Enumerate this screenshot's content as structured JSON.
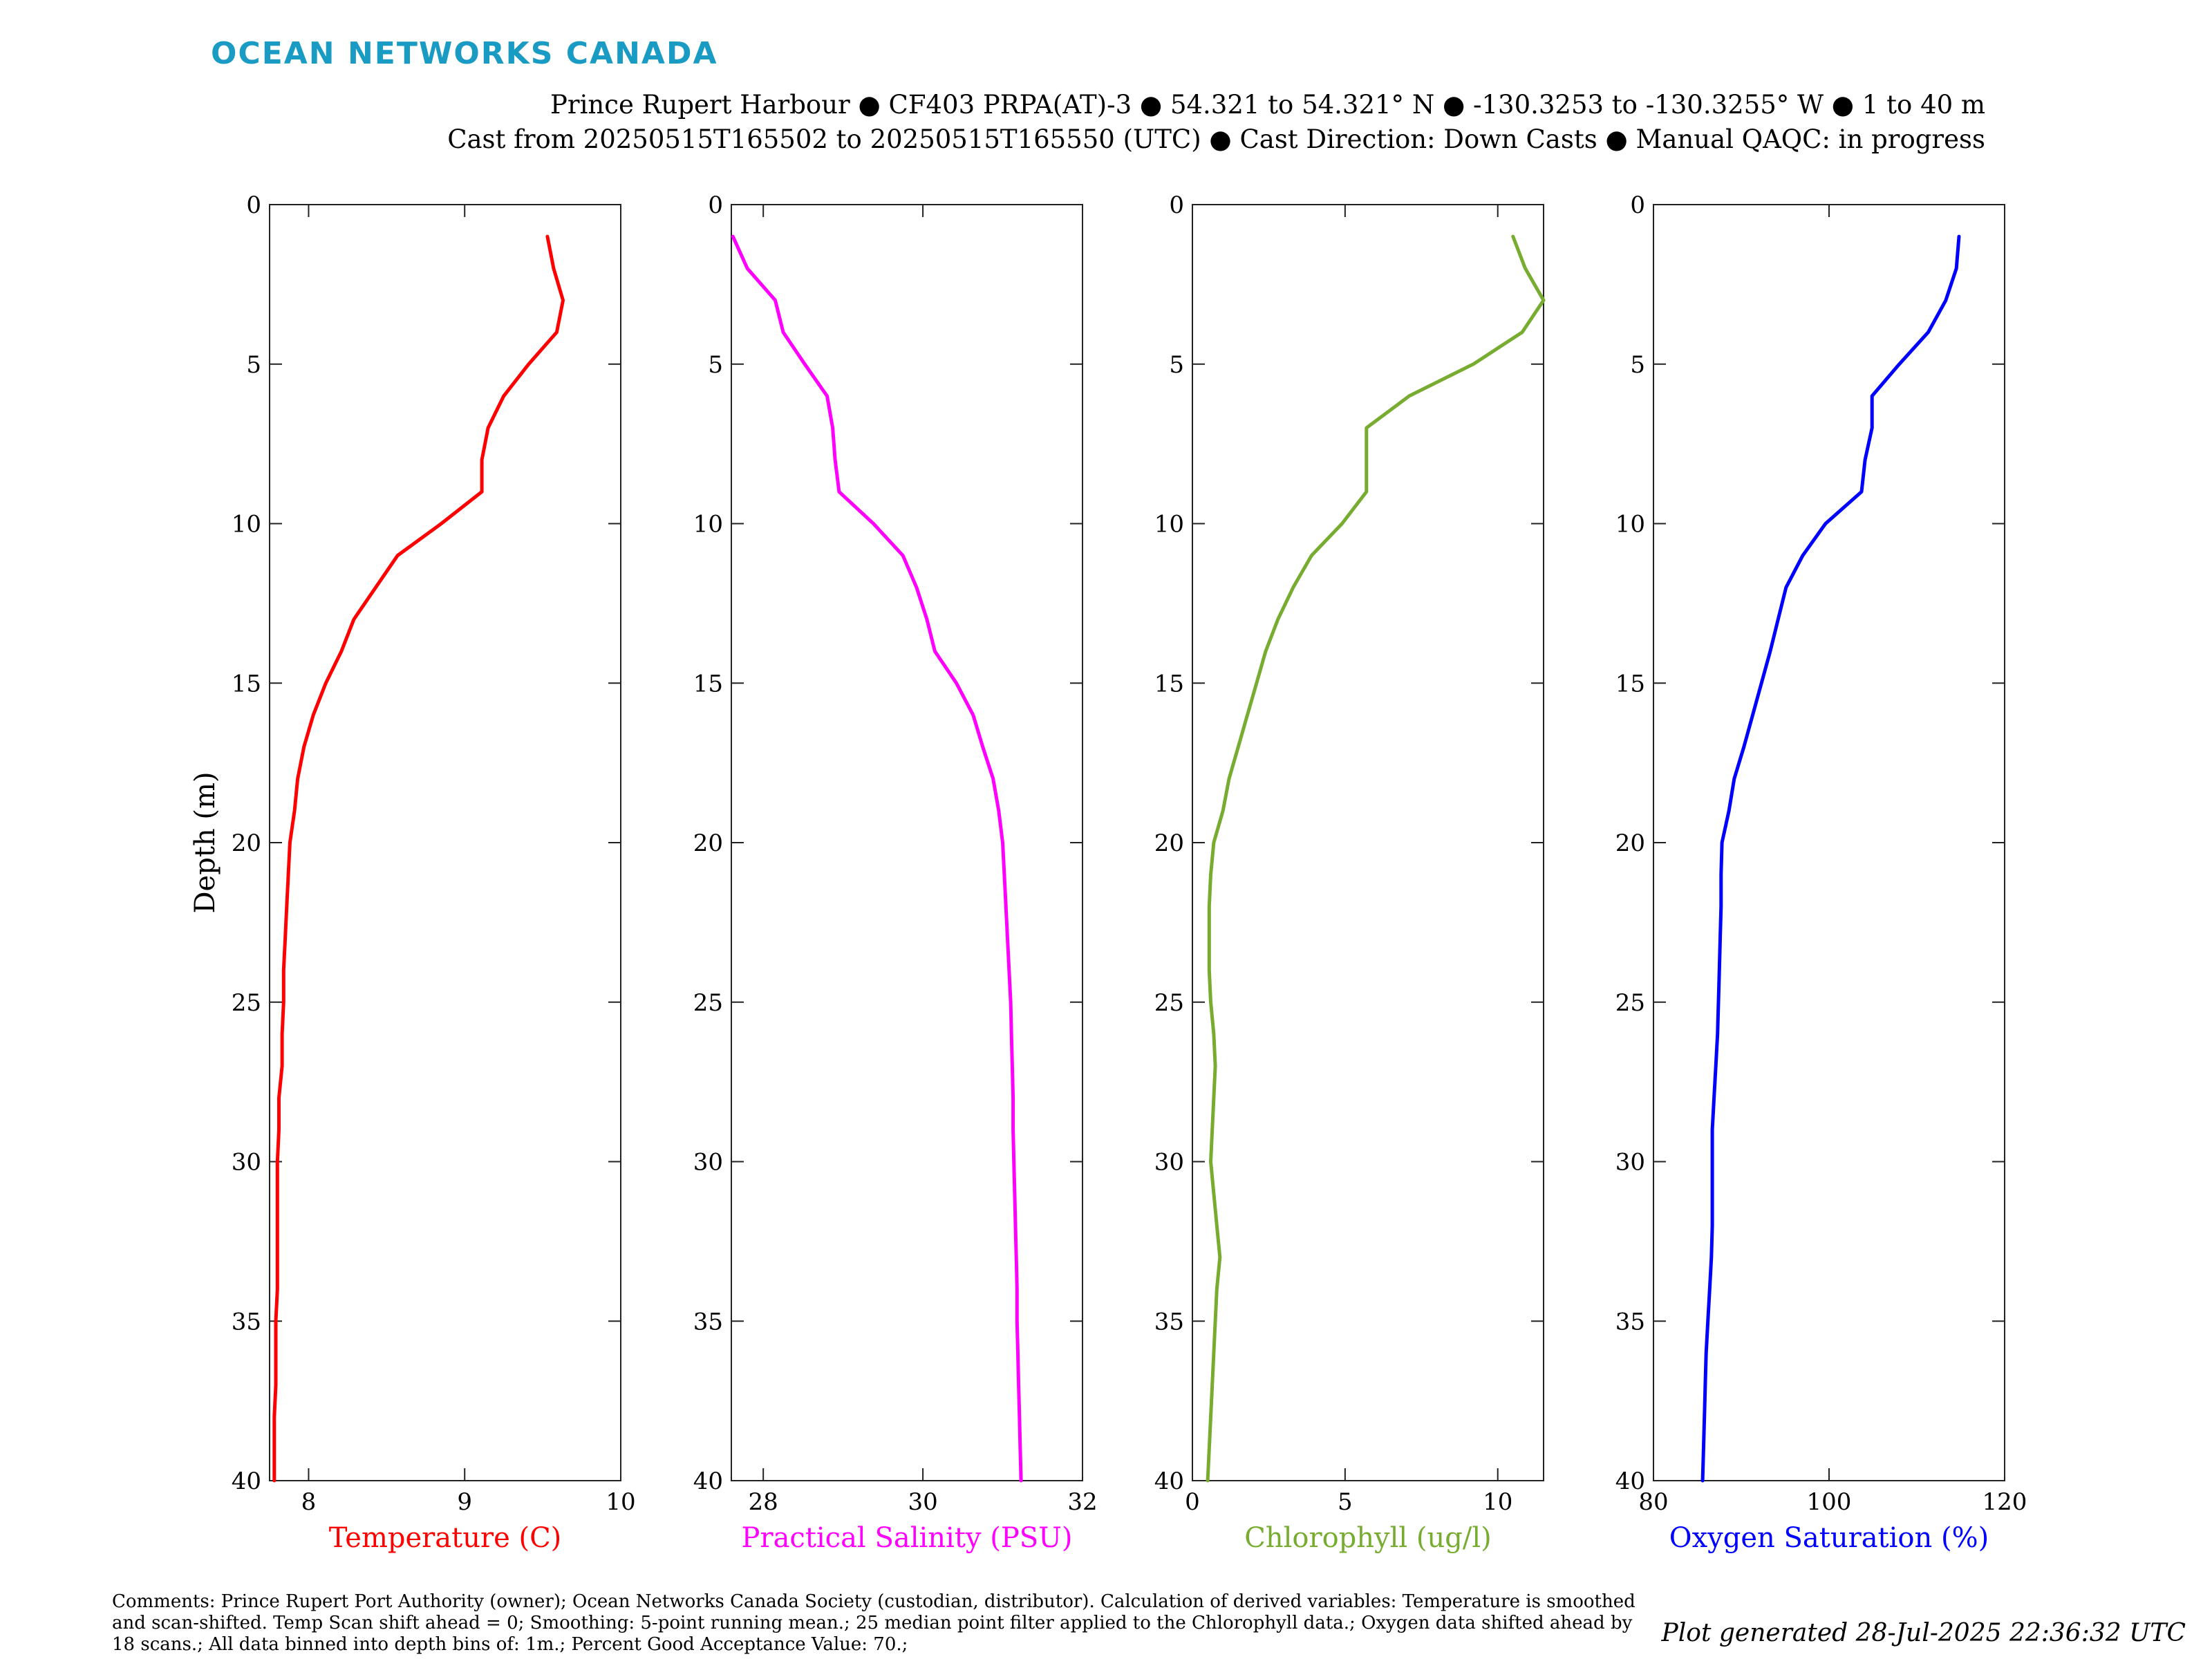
{
  "header": {
    "brand": "OCEAN NETWORKS CANADA",
    "title_line1": "Prince Rupert Harbour ● CF403 PRPA(AT)-3 ● 54.321 to 54.321° N ● -130.3253 to -130.3255° W ● 1 to 40 m",
    "title_line2": "Cast from 20250515T165502 to 20250515T165550 (UTC) ● Cast Direction: Down Casts ● Manual QAQC: in progress"
  },
  "footer": {
    "comments": "Comments: Prince Rupert Port Authority (owner); Ocean Networks Canada Society (custodian, distributor). Calculation of derived variables: Temperature is smoothed and scan-shifted. Temp Scan shift ahead = 0; Smoothing: 5-point running mean.; 25 median point filter applied to the Chlorophyll data.; Oxygen data shifted ahead by 18 scans.; All data binned into depth bins of: 1m.; Percent Good Acceptance Value: 70.;",
    "generated": "Plot generated 28-Jul-2025 22:36:32 UTC"
  },
  "colors": {
    "brand": "#1a9bc4",
    "axes": "#222222"
  },
  "chart_data": [
    {
      "type": "line",
      "xlabel": "Temperature (C)",
      "ylabel": "Depth (m)",
      "color": "#ff0000",
      "xlim": [
        7.75,
        10
      ],
      "xticks": [
        8,
        9,
        10
      ],
      "ylim": [
        0,
        40
      ],
      "yticks": [
        0,
        5,
        10,
        15,
        20,
        25,
        30,
        35,
        40
      ],
      "y_reversed": true,
      "x": [
        9.53,
        9.57,
        9.63,
        9.59,
        9.41,
        9.25,
        9.15,
        9.11,
        9.11,
        8.85,
        8.57,
        8.43,
        8.29,
        8.21,
        8.11,
        8.03,
        7.97,
        7.93,
        7.91,
        7.88,
        7.87,
        7.86,
        7.85,
        7.84,
        7.84,
        7.83,
        7.83,
        7.81,
        7.81,
        7.8,
        7.8,
        7.8,
        7.8,
        7.8,
        7.79,
        7.79,
        7.79,
        7.78,
        7.78,
        7.78
      ],
      "y": [
        1,
        2,
        3,
        4,
        5,
        6,
        7,
        8,
        9,
        10,
        11,
        12,
        13,
        14,
        15,
        16,
        17,
        18,
        19,
        20,
        21,
        22,
        23,
        24,
        25,
        26,
        27,
        28,
        29,
        30,
        31,
        32,
        33,
        34,
        35,
        36,
        37,
        38,
        39,
        40
      ]
    },
    {
      "type": "line",
      "xlabel": "Practical Salinity (PSU)",
      "ylabel": "",
      "color": "#ff00ff",
      "xlim": [
        27.6,
        32
      ],
      "xticks": [
        28,
        30,
        32
      ],
      "ylim": [
        0,
        40
      ],
      "yticks": [
        0,
        5,
        10,
        15,
        20,
        25,
        30,
        35,
        40
      ],
      "y_reversed": true,
      "x": [
        27.62,
        27.8,
        28.15,
        28.25,
        28.52,
        28.8,
        28.87,
        28.9,
        28.95,
        29.38,
        29.75,
        29.92,
        30.05,
        30.15,
        30.42,
        30.63,
        30.75,
        30.88,
        30.95,
        31.0,
        31.02,
        31.04,
        31.06,
        31.08,
        31.1,
        31.11,
        31.12,
        31.13,
        31.13,
        31.14,
        31.15,
        31.16,
        31.17,
        31.18,
        31.18,
        31.19,
        31.2,
        31.21,
        31.22,
        31.23
      ],
      "y": [
        1,
        2,
        3,
        4,
        5,
        6,
        7,
        8,
        9,
        10,
        11,
        12,
        13,
        14,
        15,
        16,
        17,
        18,
        19,
        20,
        21,
        22,
        23,
        24,
        25,
        26,
        27,
        28,
        29,
        30,
        31,
        32,
        33,
        34,
        35,
        36,
        37,
        38,
        39,
        40
      ]
    },
    {
      "type": "line",
      "xlabel": "Chlorophyll (ug/l)",
      "ylabel": "",
      "color": "#77ac30",
      "xlim": [
        0,
        11.5
      ],
      "xticks": [
        0,
        5,
        10
      ],
      "ylim": [
        0,
        40
      ],
      "yticks": [
        0,
        5,
        10,
        15,
        20,
        25,
        30,
        35,
        40
      ],
      "y_reversed": true,
      "x": [
        10.5,
        10.9,
        11.5,
        10.8,
        9.2,
        7.1,
        5.7,
        5.7,
        5.7,
        4.9,
        3.9,
        3.3,
        2.8,
        2.4,
        2.1,
        1.8,
        1.5,
        1.2,
        1.0,
        0.7,
        0.6,
        0.55,
        0.55,
        0.55,
        0.6,
        0.7,
        0.75,
        0.7,
        0.65,
        0.6,
        0.7,
        0.8,
        0.9,
        0.8,
        0.75,
        0.7,
        0.65,
        0.6,
        0.55,
        0.5
      ],
      "y": [
        1,
        2,
        3,
        4,
        5,
        6,
        7,
        8,
        9,
        10,
        11,
        12,
        13,
        14,
        15,
        16,
        17,
        18,
        19,
        20,
        21,
        22,
        23,
        24,
        25,
        26,
        27,
        28,
        29,
        30,
        31,
        32,
        33,
        34,
        35,
        36,
        37,
        38,
        39,
        40
      ]
    },
    {
      "type": "line",
      "xlabel": "Oxygen Saturation (%)",
      "ylabel": "",
      "color": "#0000ff",
      "xlim": [
        80,
        120
      ],
      "xticks": [
        80,
        100,
        120
      ],
      "ylim": [
        0,
        40
      ],
      "yticks": [
        0,
        5,
        10,
        15,
        20,
        25,
        30,
        35,
        40
      ],
      "y_reversed": true,
      "x": [
        114.8,
        114.5,
        113.3,
        111.3,
        108.0,
        104.9,
        104.9,
        104.1,
        103.7,
        99.6,
        97.0,
        95.1,
        94.2,
        93.3,
        92.3,
        91.3,
        90.3,
        89.2,
        88.6,
        87.8,
        87.7,
        87.7,
        87.6,
        87.5,
        87.4,
        87.3,
        87.1,
        86.9,
        86.7,
        86.7,
        86.7,
        86.7,
        86.6,
        86.4,
        86.2,
        86.0,
        85.9,
        85.8,
        85.7,
        85.6
      ],
      "y": [
        1,
        2,
        3,
        4,
        5,
        6,
        7,
        8,
        9,
        10,
        11,
        12,
        13,
        14,
        15,
        16,
        17,
        18,
        19,
        20,
        21,
        22,
        23,
        24,
        25,
        26,
        27,
        28,
        29,
        30,
        31,
        32,
        33,
        34,
        35,
        36,
        37,
        38,
        39,
        40
      ]
    }
  ]
}
